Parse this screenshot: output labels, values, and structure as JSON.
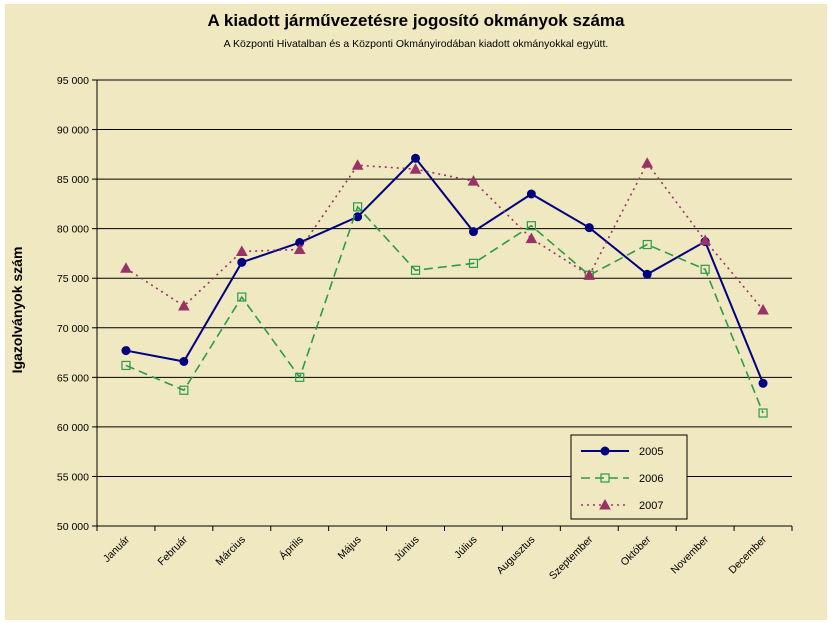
{
  "chart_data": {
    "type": "line",
    "title": "A  kiadott járművezetésre  jogosító okmányok száma",
    "subtitle": "A  Központi Hivatalban és a Központi Okmányirodában kiadott okmányokkal együtt.",
    "ylabel": "Igazolványok szám",
    "xlabel": "",
    "categories": [
      "Január",
      "Február",
      "Március",
      "Április",
      "Május",
      "Június",
      "Július",
      "Augusztus",
      "Szeptember",
      "Október",
      "November",
      "December"
    ],
    "ylim": [
      50000,
      95000
    ],
    "yticks": [
      50000,
      55000,
      60000,
      65000,
      70000,
      75000,
      80000,
      85000,
      90000,
      95000
    ],
    "ytick_labels": [
      "50 000",
      "55 000",
      "60 000",
      "65 000",
      "70 000",
      "75 000",
      "80 000",
      "85 000",
      "90 000",
      "95 000"
    ],
    "grid": true,
    "legend_position": "bottom-right",
    "series": [
      {
        "name": "2005",
        "color": "#000080",
        "marker": "dot",
        "dash": "solid",
        "values": [
          67700,
          66600,
          76600,
          78600,
          81200,
          87100,
          79700,
          83500,
          80100,
          75400,
          78700,
          64400
        ]
      },
      {
        "name": "2006",
        "color": "#2e9b4a",
        "marker": "square",
        "dash": "dashed",
        "values": [
          66200,
          63700,
          73100,
          65000,
          82200,
          75800,
          76500,
          80300,
          75300,
          78400,
          75900,
          61400
        ]
      },
      {
        "name": "2007",
        "color": "#993366",
        "marker": "triangle",
        "dash": "dotted",
        "values": [
          76000,
          72200,
          77700,
          77900,
          86400,
          86000,
          84800,
          79000,
          75300,
          86600,
          78800,
          71800
        ]
      }
    ]
  }
}
